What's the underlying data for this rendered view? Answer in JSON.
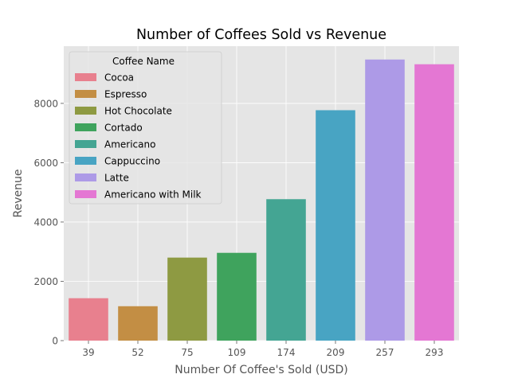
{
  "chart_data": {
    "type": "bar",
    "title": "Number of Coffees Sold vs Revenue",
    "xlabel": "Number Of Coffee's Sold (USD)",
    "ylabel": "Revenue",
    "ylim": [
      0,
      9930
    ],
    "yticks": [
      0,
      2000,
      4000,
      6000,
      8000
    ],
    "grid": true,
    "legend": {
      "title": "Coffee Name",
      "placement": "top-left"
    },
    "categories": [
      "39",
      "52",
      "75",
      "109",
      "174",
      "209",
      "257",
      "293"
    ],
    "series": [
      {
        "name": "Cocoa",
        "category": "39",
        "value": 1430,
        "color": "#e8808e"
      },
      {
        "name": "Espresso",
        "category": "52",
        "value": 1160,
        "color": "#c38e44"
      },
      {
        "name": "Hot Chocolate",
        "category": "75",
        "value": 2800,
        "color": "#8e9a42"
      },
      {
        "name": "Cortado",
        "category": "109",
        "value": 2960,
        "color": "#3fa35d"
      },
      {
        "name": "Americano",
        "category": "174",
        "value": 4770,
        "color": "#44a593"
      },
      {
        "name": "Cappuccino",
        "category": "209",
        "value": 7770,
        "color": "#48a4c3"
      },
      {
        "name": "Latte",
        "category": "257",
        "value": 9480,
        "color": "#ad9ae7"
      },
      {
        "name": "Americano with Milk",
        "category": "293",
        "value": 9320,
        "color": "#e477d3"
      }
    ]
  }
}
